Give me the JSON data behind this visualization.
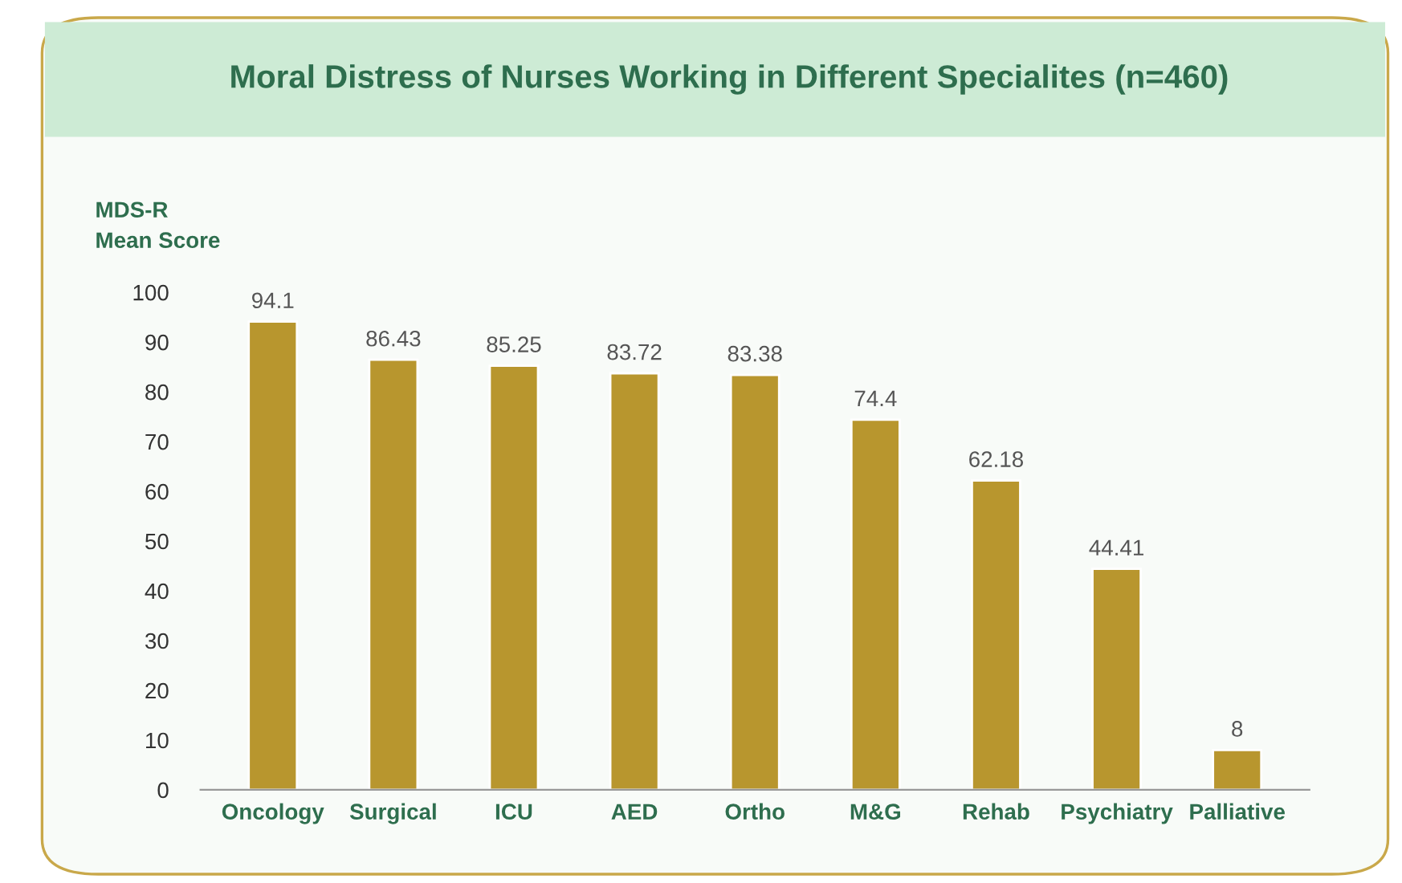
{
  "chart_data": {
    "type": "bar",
    "title": "Moral Distress of Nurses Working in Different Specialites (n=460)",
    "ylabel": "MDS-R\nMean Score",
    "categories": [
      "Oncology",
      "Surgical",
      "ICU",
      "AED",
      "Ortho",
      "M&G",
      "Rehab",
      "Psychiatry",
      "Palliative"
    ],
    "values": [
      94.1,
      86.43,
      85.25,
      83.72,
      83.38,
      74.4,
      62.18,
      44.41,
      8
    ],
    "color": "#b8962e",
    "ylim": [
      0,
      100
    ],
    "yticks": [
      0,
      10,
      20,
      30,
      40,
      50,
      60,
      70,
      80,
      90,
      100
    ],
    "data_labels": true,
    "grid": false,
    "legend": false
  }
}
